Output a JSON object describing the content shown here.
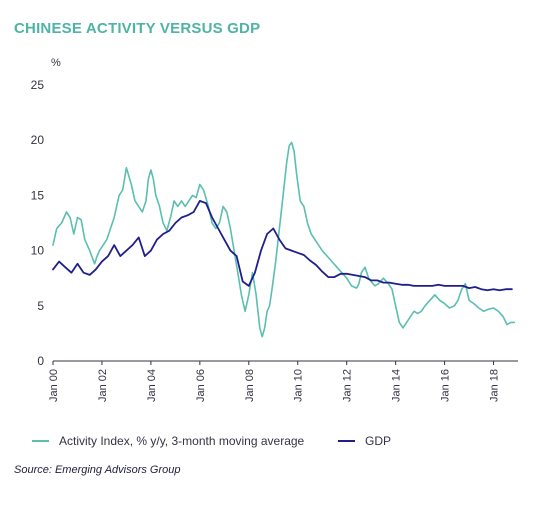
{
  "title": "CHINESE ACTIVITY VERSUS GDP",
  "source": "Source: Emerging Advisors Group",
  "chart_data": {
    "type": "line",
    "y_unit_label": "%",
    "ylim": [
      0,
      25
    ],
    "y_ticks": [
      "0",
      "5",
      "10",
      "15",
      "20",
      "25"
    ],
    "x_range": [
      2000,
      2019
    ],
    "x_ticks": [
      {
        "value": 2000,
        "label": "Jan 00"
      },
      {
        "value": 2002,
        "label": "Jan 02"
      },
      {
        "value": 2004,
        "label": "Jan 04"
      },
      {
        "value": 2006,
        "label": "Jan 06"
      },
      {
        "value": 2008,
        "label": "Jan 08"
      },
      {
        "value": 2010,
        "label": "Jan 10"
      },
      {
        "value": 2012,
        "label": "Jan 12"
      },
      {
        "value": 2014,
        "label": "Jan 14"
      },
      {
        "value": 2016,
        "label": "Jan 16"
      },
      {
        "value": 2018,
        "label": "Jan 18"
      }
    ],
    "grid": false,
    "legend_position": "bottom",
    "series": [
      {
        "name": "Activity Index, % y/y, 3-month moving average",
        "color": "#5bbfb0",
        "x": [
          2000.0,
          2000.15,
          2000.35,
          2000.55,
          2000.7,
          2000.85,
          2001.0,
          2001.15,
          2001.3,
          2001.5,
          2001.7,
          2001.8,
          2001.9,
          2002.05,
          2002.2,
          2002.35,
          2002.5,
          2002.7,
          2002.85,
          2003.0,
          2003.2,
          2003.35,
          2003.5,
          2003.65,
          2003.8,
          2003.9,
          2004.0,
          2004.1,
          2004.2,
          2004.35,
          2004.5,
          2004.65,
          2004.8,
          2004.95,
          2005.1,
          2005.25,
          2005.4,
          2005.55,
          2005.7,
          2005.85,
          2006.0,
          2006.15,
          2006.35,
          2006.5,
          2006.65,
          2006.8,
          2006.95,
          2007.1,
          2007.25,
          2007.4,
          2007.55,
          2007.7,
          2007.85,
          2008.0,
          2008.15,
          2008.3,
          2008.45,
          2008.55,
          2008.65,
          2008.75,
          2008.85,
          2008.95,
          2009.1,
          2009.25,
          2009.4,
          2009.55,
          2009.65,
          2009.75,
          2009.85,
          2009.95,
          2010.1,
          2010.25,
          2010.4,
          2010.55,
          2010.7,
          2010.85,
          2011.0,
          2011.2,
          2011.4,
          2011.6,
          2011.8,
          2012.0,
          2012.2,
          2012.4,
          2012.5,
          2012.6,
          2012.75,
          2012.9,
          2013.0,
          2013.15,
          2013.3,
          2013.5,
          2013.7,
          2013.85,
          2014.0,
          2014.15,
          2014.3,
          2014.45,
          2014.6,
          2014.75,
          2014.9,
          2015.05,
          2015.2,
          2015.4,
          2015.6,
          2015.8,
          2016.0,
          2016.2,
          2016.4,
          2016.55,
          2016.7,
          2016.85,
          2017.0,
          2017.2,
          2017.4,
          2017.6,
          2017.8,
          2018.0,
          2018.2,
          2018.4,
          2018.55,
          2018.7,
          2018.85
        ],
        "y": [
          10.5,
          12.0,
          12.5,
          13.5,
          13.0,
          11.5,
          13.0,
          12.8,
          11.0,
          10.0,
          8.8,
          9.5,
          10.0,
          10.5,
          11.0,
          12.0,
          13.0,
          15.0,
          15.5,
          17.5,
          16.0,
          14.5,
          14.0,
          13.5,
          14.5,
          16.5,
          17.3,
          16.5,
          15.0,
          14.0,
          12.5,
          11.8,
          13.0,
          14.5,
          14.0,
          14.5,
          14.0,
          14.5,
          15.0,
          14.8,
          16.0,
          15.5,
          14.0,
          12.5,
          12.0,
          12.5,
          14.0,
          13.5,
          12.0,
          10.0,
          8.0,
          6.0,
          4.5,
          6.0,
          8.0,
          6.0,
          3.0,
          2.2,
          3.0,
          4.5,
          5.0,
          6.5,
          9.0,
          12.0,
          15.0,
          18.0,
          19.5,
          19.8,
          19.0,
          17.0,
          14.5,
          14.0,
          12.5,
          11.5,
          11.0,
          10.5,
          10.0,
          9.5,
          9.0,
          8.5,
          8.0,
          7.5,
          6.8,
          6.6,
          7.0,
          8.0,
          8.5,
          7.5,
          7.2,
          6.8,
          7.0,
          7.5,
          7.0,
          6.5,
          5.0,
          3.5,
          3.0,
          3.5,
          4.0,
          4.5,
          4.3,
          4.5,
          5.0,
          5.5,
          6.0,
          5.5,
          5.2,
          4.8,
          5.0,
          5.5,
          6.5,
          7.0,
          5.5,
          5.2,
          4.8,
          4.5,
          4.7,
          4.8,
          4.5,
          4.0,
          3.3,
          3.5,
          3.5
        ]
      },
      {
        "name": "GDP",
        "color": "#1f1f8c",
        "x": [
          2000.0,
          2000.25,
          2000.5,
          2000.75,
          2001.0,
          2001.25,
          2001.5,
          2001.75,
          2002.0,
          2002.25,
          2002.5,
          2002.75,
          2003.0,
          2003.25,
          2003.5,
          2003.75,
          2004.0,
          2004.25,
          2004.5,
          2004.75,
          2005.0,
          2005.25,
          2005.5,
          2005.75,
          2006.0,
          2006.25,
          2006.5,
          2006.75,
          2007.0,
          2007.25,
          2007.5,
          2007.75,
          2008.0,
          2008.25,
          2008.5,
          2008.75,
          2009.0,
          2009.25,
          2009.5,
          2009.75,
          2010.0,
          2010.25,
          2010.5,
          2010.75,
          2011.0,
          2011.25,
          2011.5,
          2011.75,
          2012.0,
          2012.25,
          2012.5,
          2012.75,
          2013.0,
          2013.25,
          2013.5,
          2013.75,
          2014.0,
          2014.25,
          2014.5,
          2014.75,
          2015.0,
          2015.25,
          2015.5,
          2015.75,
          2016.0,
          2016.25,
          2016.5,
          2016.75,
          2017.0,
          2017.25,
          2017.5,
          2017.75,
          2018.0,
          2018.25,
          2018.5,
          2018.75
        ],
        "y": [
          8.3,
          9.0,
          8.5,
          8.0,
          8.8,
          8.0,
          7.8,
          8.3,
          9.0,
          9.5,
          10.5,
          9.5,
          10.0,
          10.5,
          11.2,
          9.5,
          10.0,
          11.0,
          11.5,
          11.8,
          12.5,
          13.0,
          13.2,
          13.5,
          14.5,
          14.3,
          13.0,
          12.0,
          11.0,
          10.0,
          9.5,
          7.2,
          6.8,
          8.0,
          10.0,
          11.5,
          12.0,
          11.0,
          10.2,
          10.0,
          9.8,
          9.6,
          9.1,
          8.7,
          8.1,
          7.6,
          7.6,
          7.9,
          7.9,
          7.8,
          7.7,
          7.6,
          7.3,
          7.3,
          7.1,
          7.1,
          7.0,
          6.9,
          6.9,
          6.8,
          6.8,
          6.8,
          6.8,
          6.9,
          6.8,
          6.8,
          6.8,
          6.8,
          6.6,
          6.7,
          6.5,
          6.4,
          6.5,
          6.4,
          6.5,
          6.5
        ]
      }
    ]
  }
}
